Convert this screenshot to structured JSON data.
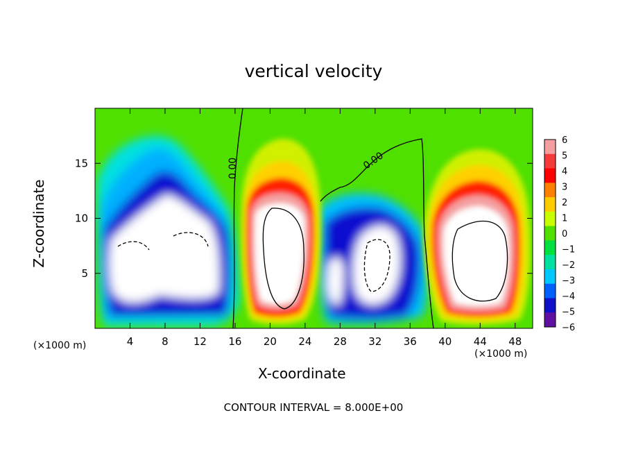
{
  "title": "vertical velocity",
  "footer": "CONTOUR INTERVAL = 8.000E+00",
  "chart_data": {
    "type": "heatmap",
    "title": "vertical velocity",
    "xlabel": "X-coordinate",
    "ylabel": "Z-coordinate",
    "x_unit_label": "(×1000 m)",
    "xlim": [
      0,
      50
    ],
    "ylim": [
      0,
      20
    ],
    "x_ticks": [
      4,
      8,
      12,
      16,
      20,
      24,
      28,
      32,
      36,
      40,
      44,
      48
    ],
    "y_ticks": [
      5,
      10,
      15
    ],
    "colorbar": {
      "levels": [
        6,
        5,
        4,
        3,
        2,
        1,
        0,
        -1,
        -2,
        -3,
        -4,
        -5,
        -6
      ],
      "colors": [
        "#f4a0a0",
        "#f43a3a",
        "#ff0000",
        "#ff8000",
        "#ffcc00",
        "#c8ff00",
        "#50e000",
        "#00e040",
        "#00e0a0",
        "#00c8ff",
        "#0060ff",
        "#1010c8",
        "#6010a0"
      ]
    },
    "contour_label": "0.00",
    "contour_interval": "8.000E+00",
    "updrafts_center_x": [
      20,
      44
    ],
    "downdrafts_center_x": [
      8,
      32
    ],
    "zero_contours_x": [
      16,
      27,
      39
    ]
  }
}
